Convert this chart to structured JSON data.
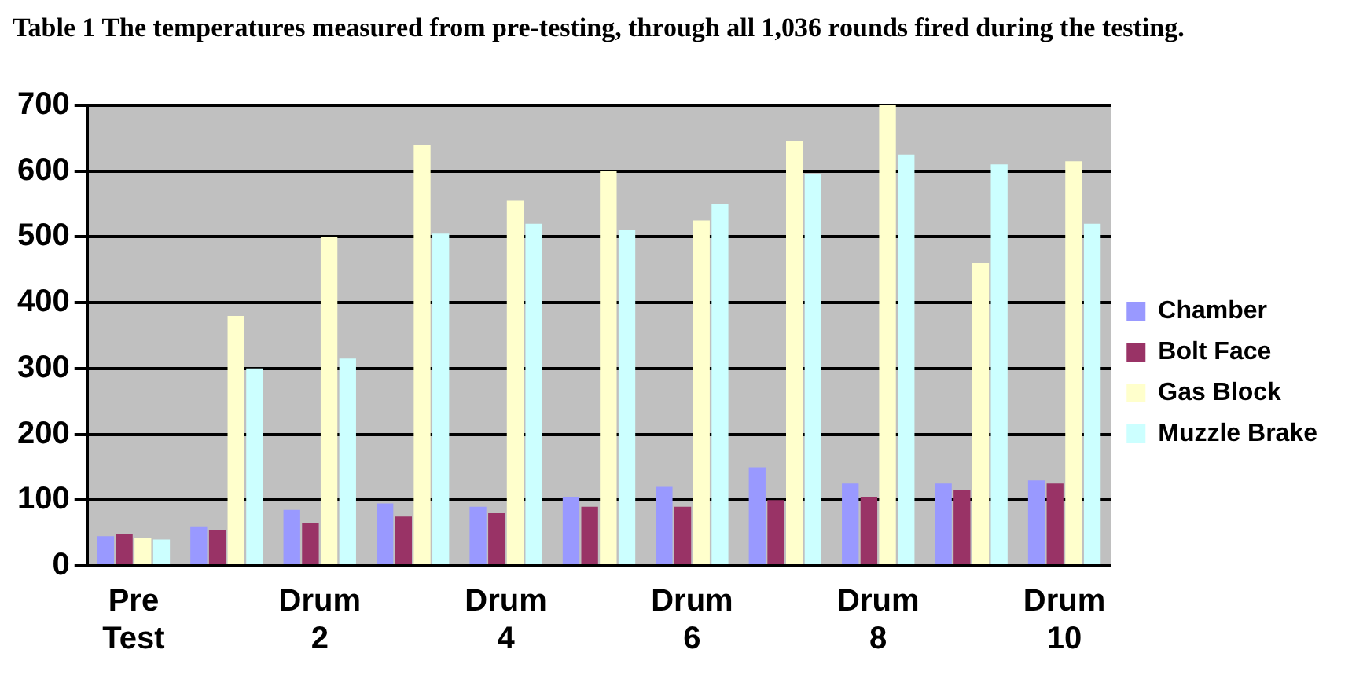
{
  "chart_data": {
    "type": "bar",
    "title": "Table 1  The temperatures measured from pre-testing, through all 1,036 rounds fired during the testing.",
    "categories": [
      "Pre Test",
      null,
      "Drum 2",
      null,
      "Drum 4",
      null,
      "Drum 6",
      null,
      "Drum 8",
      null,
      "Drum 10"
    ],
    "series": [
      {
        "name": "Chamber",
        "color": "#9999ff",
        "values": [
          45,
          60,
          85,
          95,
          90,
          105,
          120,
          150,
          125,
          125,
          130
        ]
      },
      {
        "name": "Bolt Face",
        "color": "#993366",
        "values": [
          48,
          55,
          65,
          75,
          80,
          90,
          90,
          100,
          105,
          115,
          125
        ]
      },
      {
        "name": "Gas Block",
        "color": "#ffffcc",
        "values": [
          42,
          380,
          500,
          640,
          555,
          600,
          525,
          645,
          700,
          460,
          615
        ]
      },
      {
        "name": "Muzzle Brake",
        "color": "#ccffff",
        "values": [
          40,
          300,
          315,
          505,
          520,
          510,
          550,
          595,
          625,
          610,
          520
        ]
      }
    ],
    "ylim": [
      0,
      700
    ],
    "yticks": [
      0,
      100,
      200,
      300,
      400,
      500,
      600,
      700
    ],
    "grid": "y",
    "legend": "right"
  }
}
